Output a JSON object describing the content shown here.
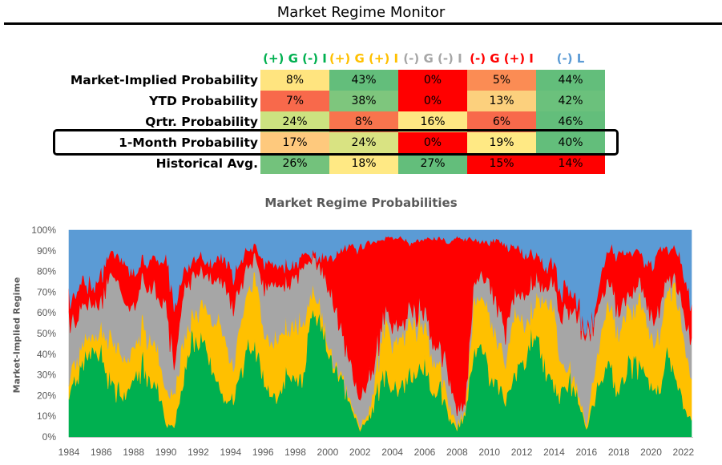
{
  "title": "Market Regime Monitor",
  "table": {
    "columns": [
      {
        "label": "(+) G (-) I",
        "color": "#00b050"
      },
      {
        "label": "(+) G (+) I",
        "color": "#ffc000"
      },
      {
        "label": "(-) G (-) I",
        "color": "#a6a6a6"
      },
      {
        "label": "(-) G (+) I",
        "color": "#ff0000"
      },
      {
        "label": "(-) L",
        "color": "#5b9bd5"
      }
    ],
    "rows": [
      {
        "label": "Market-Implied Probability",
        "cells": [
          {
            "value": "8%",
            "bg": "#ffe47f"
          },
          {
            "value": "43%",
            "bg": "#63be7b"
          },
          {
            "value": "0%",
            "bg": "#ff0000"
          },
          {
            "value": "5%",
            "bg": "#fb8c54"
          },
          {
            "value": "44%",
            "bg": "#63be7b"
          }
        ]
      },
      {
        "label": "YTD Probability",
        "cells": [
          {
            "value": "7%",
            "bg": "#f8694b"
          },
          {
            "value": "38%",
            "bg": "#7ec67d"
          },
          {
            "value": "0%",
            "bg": "#ff0000"
          },
          {
            "value": "13%",
            "bg": "#fcd07d"
          },
          {
            "value": "42%",
            "bg": "#6bc17c"
          }
        ]
      },
      {
        "label": "Qrtr. Probability",
        "cells": [
          {
            "value": "24%",
            "bg": "#cce280"
          },
          {
            "value": "8%",
            "bg": "#f8744d"
          },
          {
            "value": "16%",
            "bg": "#fee783"
          },
          {
            "value": "6%",
            "bg": "#f8694b"
          },
          {
            "value": "46%",
            "bg": "#63be7b"
          }
        ]
      },
      {
        "label": "1-Month Probability",
        "cells": [
          {
            "value": "17%",
            "bg": "#fec97d"
          },
          {
            "value": "24%",
            "bg": "#d9e382"
          },
          {
            "value": "0%",
            "bg": "#ff0000"
          },
          {
            "value": "19%",
            "bg": "#ffe984"
          },
          {
            "value": "40%",
            "bg": "#63be7b"
          }
        ]
      },
      {
        "label": "Historical Avg.",
        "cells": [
          {
            "value": "26%",
            "bg": "#73c27c"
          },
          {
            "value": "18%",
            "bg": "#ffe984"
          },
          {
            "value": "27%",
            "bg": "#63be7b"
          },
          {
            "value": "15%",
            "bg": "#ff0000"
          },
          {
            "value": "14%",
            "bg": "#ff0000"
          }
        ]
      }
    ],
    "highlighted_row": "1-Month Probability"
  },
  "chart_data": {
    "type": "area",
    "stacked": true,
    "title": "Market Regime Probabilities",
    "ylabel": "Market-Implied Regime",
    "xlabel": "",
    "xlim": [
      1984,
      2022.6
    ],
    "ylim": [
      0,
      100
    ],
    "x_ticks": [
      "1984",
      "1986",
      "1988",
      "1990",
      "1992",
      "1994",
      "1996",
      "1998",
      "2000",
      "2002",
      "2004",
      "2006",
      "2008",
      "2010",
      "2012",
      "2014",
      "2016",
      "2018",
      "2020",
      "2022"
    ],
    "y_ticks": [
      "0%",
      "10%",
      "20%",
      "30%",
      "40%",
      "50%",
      "60%",
      "70%",
      "80%",
      "90%",
      "100%"
    ],
    "grid": false,
    "x": [
      1984.0,
      1984.5,
      1985.0,
      1985.5,
      1986.0,
      1986.5,
      1987.0,
      1987.5,
      1988.0,
      1988.5,
      1989.0,
      1989.5,
      1990.0,
      1990.5,
      1991.0,
      1991.5,
      1992.0,
      1992.5,
      1993.0,
      1993.5,
      1994.0,
      1994.5,
      1995.0,
      1995.5,
      1996.0,
      1996.5,
      1997.0,
      1997.5,
      1998.0,
      1998.5,
      1999.0,
      1999.5,
      2000.0,
      2000.5,
      2001.0,
      2001.5,
      2002.0,
      2002.5,
      2003.0,
      2003.5,
      2004.0,
      2004.5,
      2005.0,
      2005.5,
      2006.0,
      2006.5,
      2007.0,
      2007.5,
      2008.0,
      2008.5,
      2009.0,
      2009.5,
      2010.0,
      2010.5,
      2011.0,
      2011.5,
      2012.0,
      2012.5,
      2013.0,
      2013.5,
      2014.0,
      2014.5,
      2015.0,
      2015.5,
      2016.0,
      2016.5,
      2017.0,
      2017.5,
      2018.0,
      2018.5,
      2019.0,
      2019.5,
      2020.0,
      2020.5,
      2021.0,
      2021.5,
      2022.0,
      2022.5
    ],
    "series": [
      {
        "name": "(+) G (-) I",
        "color": "#00b050",
        "values": [
          20,
          30,
          38,
          42,
          40,
          26,
          22,
          18,
          30,
          34,
          28,
          24,
          6,
          5,
          25,
          44,
          48,
          42,
          28,
          22,
          14,
          28,
          40,
          44,
          28,
          24,
          18,
          34,
          26,
          30,
          62,
          54,
          40,
          34,
          22,
          14,
          3,
          8,
          20,
          30,
          26,
          24,
          30,
          32,
          34,
          18,
          24,
          8,
          4,
          10,
          40,
          42,
          30,
          24,
          18,
          30,
          34,
          46,
          50,
          30,
          24,
          20,
          26,
          20,
          4,
          18,
          30,
          36,
          20,
          34,
          36,
          30,
          26,
          22,
          40,
          34,
          14,
          8
        ]
      },
      {
        "name": "(+) G (+) I",
        "color": "#ffc000",
        "values": [
          8,
          10,
          8,
          6,
          10,
          24,
          20,
          16,
          14,
          18,
          20,
          16,
          18,
          14,
          20,
          10,
          14,
          20,
          26,
          30,
          18,
          22,
          28,
          32,
          24,
          26,
          30,
          20,
          28,
          26,
          10,
          8,
          4,
          2,
          2,
          2,
          2,
          2,
          12,
          24,
          22,
          24,
          26,
          22,
          20,
          16,
          10,
          6,
          2,
          2,
          24,
          26,
          30,
          20,
          18,
          30,
          24,
          12,
          20,
          34,
          38,
          12,
          6,
          4,
          2,
          14,
          22,
          30,
          24,
          30,
          26,
          34,
          20,
          26,
          30,
          40,
          34,
          20
        ]
      },
      {
        "name": "(-) G (-) I",
        "color": "#a6a6a6",
        "values": [
          28,
          20,
          18,
          16,
          14,
          30,
          34,
          26,
          20,
          24,
          22,
          28,
          40,
          14,
          24,
          20,
          18,
          16,
          20,
          24,
          30,
          20,
          14,
          10,
          22,
          26,
          26,
          22,
          22,
          28,
          16,
          20,
          28,
          26,
          24,
          18,
          12,
          18,
          8,
          6,
          8,
          6,
          6,
          6,
          8,
          8,
          10,
          12,
          6,
          4,
          8,
          10,
          14,
          18,
          16,
          10,
          12,
          14,
          8,
          6,
          12,
          26,
          30,
          34,
          40,
          26,
          16,
          10,
          12,
          6,
          10,
          8,
          10,
          12,
          6,
          4,
          12,
          20
        ]
      },
      {
        "name": "(-) G (+) I",
        "color": "#ff0000",
        "values": [
          10,
          14,
          10,
          8,
          14,
          10,
          12,
          22,
          14,
          10,
          14,
          16,
          22,
          30,
          10,
          8,
          8,
          6,
          10,
          12,
          16,
          12,
          8,
          6,
          10,
          10,
          8,
          8,
          6,
          6,
          2,
          4,
          14,
          26,
          44,
          58,
          74,
          66,
          54,
          36,
          40,
          42,
          32,
          34,
          34,
          54,
          52,
          68,
          84,
          80,
          24,
          16,
          20,
          34,
          40,
          22,
          20,
          16,
          12,
          10,
          10,
          12,
          10,
          6,
          2,
          4,
          14,
          16,
          30,
          20,
          18,
          14,
          26,
          30,
          14,
          14,
          20,
          16
        ]
      },
      {
        "name": "(-) L",
        "color": "#5b9bd5",
        "values": [
          34,
          26,
          26,
          28,
          22,
          10,
          12,
          18,
          22,
          14,
          16,
          16,
          14,
          37,
          21,
          18,
          12,
          16,
          16,
          12,
          22,
          18,
          10,
          8,
          16,
          14,
          18,
          16,
          18,
          10,
          10,
          14,
          14,
          12,
          8,
          8,
          9,
          6,
          6,
          4,
          4,
          4,
          6,
          6,
          4,
          4,
          4,
          6,
          4,
          4,
          4,
          6,
          6,
          4,
          8,
          8,
          10,
          12,
          10,
          20,
          16,
          30,
          28,
          36,
          52,
          38,
          18,
          8,
          14,
          10,
          10,
          14,
          18,
          10,
          10,
          8,
          20,
          36
        ]
      }
    ]
  }
}
